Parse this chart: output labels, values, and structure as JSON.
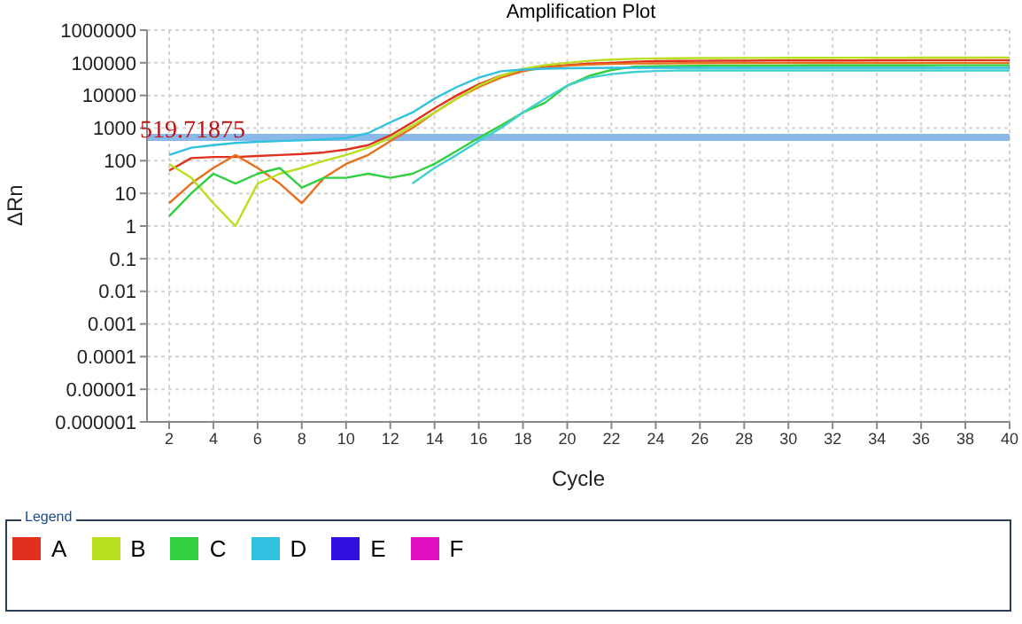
{
  "chart_data": {
    "type": "line",
    "title": "Amplification Plot",
    "xlabel": "Cycle",
    "ylabel": "ΔRn",
    "legend_title": "Legend",
    "legend": "bottom",
    "log": true,
    "grid": true,
    "x": [
      2,
      3,
      4,
      5,
      6,
      7,
      8,
      9,
      10,
      11,
      12,
      13,
      14,
      15,
      16,
      17,
      18,
      19,
      20,
      21,
      22,
      23,
      24,
      25,
      26,
      27,
      28,
      29,
      30,
      31,
      32,
      33,
      34,
      35,
      36,
      37,
      38,
      39,
      40
    ],
    "xlim": [
      1,
      40
    ],
    "xticks": [
      2,
      4,
      6,
      8,
      10,
      12,
      14,
      16,
      18,
      20,
      22,
      24,
      26,
      28,
      30,
      32,
      34,
      36,
      38,
      40
    ],
    "ylim": [
      1e-06,
      1000000
    ],
    "yticks": [
      {
        "value": 1e-06,
        "label": "0.000001"
      },
      {
        "value": 1e-05,
        "label": "0.00001"
      },
      0.0001,
      0.001,
      0.01,
      0.1,
      1,
      10,
      100,
      1000,
      10000,
      100000,
      1000000
    ],
    "series": [
      {
        "name": "A",
        "color": "#e0301e",
        "values": [
          50,
          120,
          130,
          130,
          140,
          150,
          160,
          180,
          220,
          300,
          600,
          1500,
          4000,
          10000,
          22000,
          40000,
          60000,
          75000,
          85000,
          95000,
          100000,
          108000,
          112000,
          114000,
          115000,
          116000,
          116000,
          117000,
          117000,
          118000,
          118000,
          118000,
          119000,
          119000,
          120000,
          120000,
          120000,
          120000,
          120000
        ]
      },
      {
        "color": "#e8701e",
        "values": [
          5,
          20,
          60,
          150,
          60,
          20,
          5,
          30,
          80,
          150,
          400,
          1000,
          3000,
          8000,
          18000,
          35000,
          55000,
          72000,
          82000,
          88000,
          92000,
          95000,
          96000,
          97000,
          97000,
          98000,
          98000,
          98000,
          98000,
          98000,
          99000,
          99000,
          99000,
          99000,
          99000,
          99000,
          99000,
          99000,
          99000
        ]
      },
      {
        "name": "B",
        "color": "#b8e020",
        "values": [
          80,
          30,
          5,
          1,
          20,
          40,
          60,
          100,
          150,
          250,
          500,
          1200,
          3000,
          8000,
          20000,
          40000,
          65000,
          85000,
          100000,
          115000,
          125000,
          132000,
          136000,
          138000,
          140000,
          140000,
          141000,
          141000,
          142000,
          142000,
          142000,
          143000,
          143000,
          143000,
          144000,
          144000,
          144000,
          145000,
          145000
        ]
      },
      {
        "name": "C",
        "color": "#30d040",
        "values": [
          2,
          10,
          40,
          20,
          40,
          60,
          15,
          30,
          30,
          40,
          30,
          40,
          80,
          200,
          500,
          1200,
          3000,
          6000,
          20000,
          40000,
          60000,
          76000,
          78000,
          80000,
          81000,
          82000,
          82000,
          82000,
          82000,
          83000,
          83000,
          83000,
          83000,
          83000,
          83000,
          84000,
          84000,
          84000,
          84000
        ]
      },
      {
        "name": "D",
        "color": "#30c0e0",
        "values": [
          150,
          250,
          300,
          350,
          380,
          400,
          420,
          450,
          500,
          700,
          1500,
          3000,
          8000,
          18000,
          35000,
          55000,
          62000,
          66000,
          68000,
          69000,
          70000,
          70000,
          70000,
          70000,
          70000,
          70000,
          70000,
          70000,
          70000,
          70000,
          70000,
          70000,
          70000,
          70000,
          70000,
          70000,
          70000,
          70000,
          70000
        ]
      },
      {
        "color": "#40d0d0",
        "values": [
          null,
          null,
          null,
          null,
          null,
          null,
          null,
          null,
          null,
          null,
          null,
          20,
          60,
          150,
          400,
          1000,
          3000,
          8000,
          20000,
          35000,
          45000,
          52000,
          56000,
          58000,
          58000,
          58000,
          58000,
          58000,
          58000,
          58000,
          58000,
          58000,
          58000,
          58000,
          58000,
          58000,
          58000,
          58000,
          58000
        ]
      },
      {
        "name": "E",
        "color": "#3010e0",
        "values": [
          null,
          null,
          null,
          null,
          null,
          null,
          null,
          null,
          null,
          null,
          null,
          null,
          null,
          null,
          null,
          null,
          null,
          null,
          null,
          null,
          null,
          null,
          null,
          null,
          null,
          null,
          null,
          null,
          null,
          null,
          null,
          null,
          null,
          null,
          null,
          null,
          null,
          null,
          null
        ]
      },
      {
        "name": "F",
        "color": "#e010c0",
        "values": [
          null,
          null,
          null,
          null,
          null,
          null,
          null,
          null,
          null,
          null,
          null,
          null,
          null,
          null,
          null,
          null,
          null,
          null,
          null,
          null,
          null,
          null,
          null,
          null,
          null,
          null,
          null,
          null,
          null,
          null,
          null,
          null,
          null,
          null,
          null,
          null,
          null,
          null,
          null
        ]
      }
    ],
    "ref_lines": [
      {
        "axis": "y",
        "value": 519.71875,
        "label": "519.71875",
        "color": "#8ab8e8"
      }
    ]
  }
}
